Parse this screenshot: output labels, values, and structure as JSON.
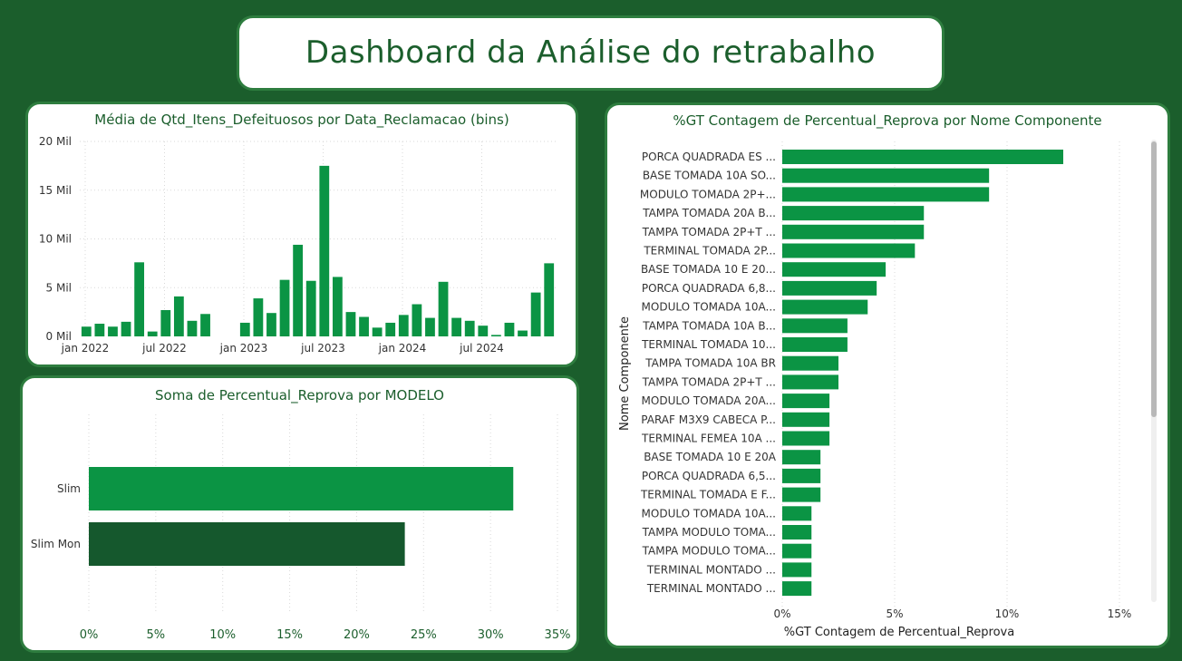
{
  "title": "Dashboard da Análise do retrabalho",
  "colors": {
    "bar": "#0b9444",
    "bar_dark": "#15582d",
    "text": "#1b5e2c",
    "axis_text": "#333333",
    "grid": "#d9d9d9"
  },
  "chart_data": [
    {
      "type": "bar",
      "title": "Média de Qtd_Itens_Defeituosos por Data_Reclamacao (bins)",
      "xlabel": "",
      "ylabel": "",
      "x_tick_labels": [
        "jan 2022",
        "jul 2022",
        "jan 2023",
        "jul 2023",
        "jan 2024",
        "jul 2024"
      ],
      "y_tick_labels": [
        "0 Mil",
        "5 Mil",
        "10 Mil",
        "15 Mil",
        "20 Mil"
      ],
      "ylim": [
        0,
        20000
      ],
      "grid": true,
      "values": [
        1000,
        1300,
        1000,
        1500,
        7600,
        500,
        2700,
        4100,
        1600,
        2300,
        null,
        null,
        1400,
        3900,
        2400,
        5800,
        9400,
        5700,
        17500,
        6100,
        2500,
        2000,
        900,
        1400,
        2200,
        3300,
        1900,
        5600,
        1900,
        1600,
        1100,
        150,
        1400,
        600,
        4500,
        7500
      ]
    },
    {
      "type": "bar",
      "orientation": "horizontal",
      "title": "Soma de Percentual_Reprova por MODELO",
      "xlabel": "",
      "ylabel": "",
      "categories": [
        "Slim",
        "Slim Mon"
      ],
      "values": [
        31.7,
        23.6
      ],
      "xlim": [
        0,
        35
      ],
      "x_tick_labels": [
        "0%",
        "5%",
        "10%",
        "15%",
        "20%",
        "25%",
        "30%",
        "35%"
      ],
      "grid": true
    },
    {
      "type": "bar",
      "orientation": "horizontal",
      "title": "%GT Contagem de Percentual_Reprova por Nome Componente",
      "xlabel": "%GT Contagem de Percentual_Reprova",
      "ylabel": "Nome Componente",
      "categories": [
        "PORCA QUADRADA ES ...",
        "BASE TOMADA 10A SO...",
        "MODULO TOMADA 2P+...",
        "TAMPA TOMADA 20A B...",
        "TAMPA TOMADA 2P+T ...",
        "TERMINAL TOMADA 2P...",
        "BASE TOMADA 10 E 20...",
        "PORCA QUADRADA 6,8...",
        "MODULO TOMADA 10A...",
        "TAMPA TOMADA 10A B...",
        "TERMINAL TOMADA 10...",
        "TAMPA TOMADA 10A BR",
        "TAMPA TOMADA 2P+T ...",
        "MODULO TOMADA 20A...",
        "PARAF M3X9 CABECA P...",
        "TERMINAL FEMEA 10A ...",
        "BASE TOMADA 10 E 20A",
        "PORCA QUADRADA 6,5...",
        "TERMINAL TOMADA E F...",
        "MODULO TOMADA 10A...",
        "TAMPA MODULO TOMA...",
        "TAMPA MODULO TOMA...",
        "TERMINAL MONTADO ...",
        "TERMINAL MONTADO ..."
      ],
      "values": [
        12.5,
        9.2,
        9.2,
        6.3,
        6.3,
        5.9,
        4.6,
        4.2,
        3.8,
        2.9,
        2.9,
        2.5,
        2.5,
        2.1,
        2.1,
        2.1,
        1.7,
        1.7,
        1.7,
        1.3,
        1.3,
        1.3,
        1.3,
        1.3
      ],
      "xlim": [
        0,
        16
      ],
      "x_tick_labels": [
        "0%",
        "5%",
        "10%",
        "15%"
      ],
      "grid": true
    }
  ]
}
